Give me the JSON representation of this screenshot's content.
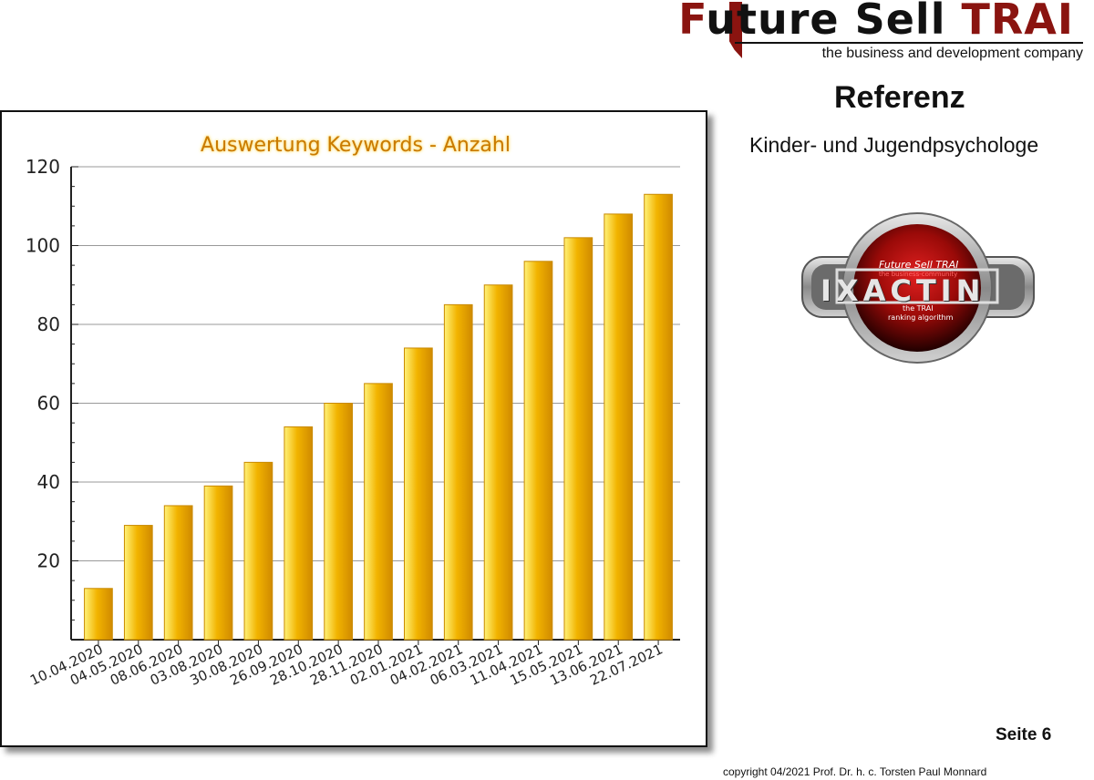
{
  "brand": {
    "name_first": "F",
    "name_rest": "uture Sell ",
    "name_trai": "TRAI",
    "tagline": "the business and development company"
  },
  "header": {
    "title": "Referenz",
    "subtitle": "Kinder- und Jugendpsychologe"
  },
  "logo": {
    "top_text": "Future Sell TRAI",
    "community_text": "the business-community",
    "word": "IXACTIN",
    "caption_1": "the TRAI",
    "caption_2": "ranking algorithm",
    "colors": {
      "ring": "#9a9a9a",
      "core": "#c0100e",
      "band": "#5a5a5a"
    }
  },
  "chart_data": {
    "type": "bar",
    "title": "Auswertung Keywords - Anzahl",
    "categories": [
      "10.04.2020",
      "04.05.2020",
      "08.06.2020",
      "03.08.2020",
      "30.08.2020",
      "26.09.2020",
      "28.10.2020",
      "28.11.2020",
      "02.01.2021",
      "04.02.2021",
      "06.03.2021",
      "11.04.2021",
      "15.05.2021",
      "13.06.2021",
      "22.07.2021"
    ],
    "values": [
      13,
      29,
      34,
      39,
      45,
      54,
      60,
      65,
      74,
      85,
      90,
      96,
      102,
      108,
      113
    ],
    "ylim": [
      0,
      120
    ],
    "yticks": [
      20,
      40,
      60,
      80,
      100,
      120
    ],
    "grid": true,
    "colors": {
      "bar_light": "#fff27a",
      "bar_mid": "#f2b400",
      "bar_dark": "#d08a00",
      "title": "#c97a00"
    }
  },
  "footer": {
    "page": "Seite 6",
    "copyright": "copyright 04/2021 Prof. Dr. h. c. Torsten Paul Monnard"
  }
}
